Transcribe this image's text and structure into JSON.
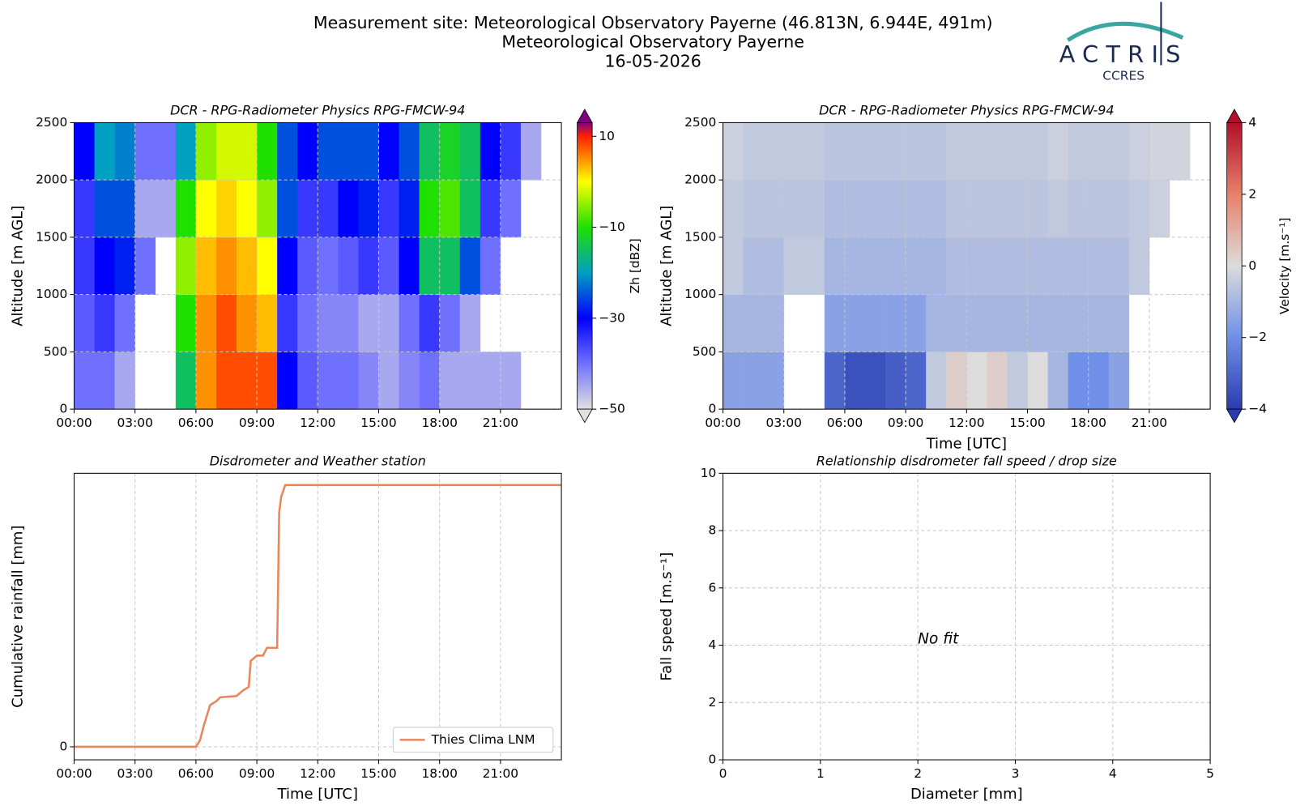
{
  "header": {
    "title": "Measurement site: Meteorological Observatory Payerne (46.813N, 6.944E, 491m)",
    "subtitle": "Meteorological Observatory Payerne",
    "date": "16-05-2026"
  },
  "logo": {
    "name": "ACTRIS",
    "sub": "CCRES"
  },
  "chart_data": [
    {
      "type": "heatmap",
      "title": "DCR - RPG-Radiometer Physics RPG-FMCW-94",
      "ylabel": "Altitude [m AGL]",
      "xlim": [
        0,
        24
      ],
      "xticks": [
        {
          "value": 0,
          "label": "00:00"
        },
        {
          "value": 3,
          "label": "03:00"
        },
        {
          "value": 6,
          "label": "06:00"
        },
        {
          "value": 9,
          "label": "09:00"
        },
        {
          "value": 12,
          "label": "12:00"
        },
        {
          "value": 15,
          "label": "15:00"
        },
        {
          "value": 18,
          "label": "18:00"
        },
        {
          "value": 21,
          "label": "21:00"
        }
      ],
      "ylim": [
        0,
        2500
      ],
      "yticks": [
        0,
        500,
        1000,
        1500,
        2000,
        2500
      ],
      "grid": true,
      "x": [
        0,
        1,
        2,
        3,
        4,
        5,
        6,
        7,
        8,
        9,
        10,
        11,
        12,
        13,
        14,
        15,
        16,
        17,
        18,
        19,
        20,
        21,
        22,
        23,
        24
      ],
      "y": [
        0,
        500,
        1000,
        1500,
        2000,
        2500
      ],
      "z": [
        [
          -40,
          -40,
          -45,
          null,
          null,
          -15,
          5,
          8,
          8,
          8,
          -30,
          -38,
          -40,
          -40,
          -42,
          -45,
          -42,
          -40,
          -45,
          -45,
          -45,
          -45,
          null,
          null
        ],
        [
          -38,
          -35,
          -40,
          null,
          null,
          -10,
          5,
          8,
          5,
          3,
          -35,
          -40,
          -42,
          -42,
          -45,
          -45,
          -40,
          -35,
          -40,
          -45,
          null,
          null,
          null,
          null
        ],
        [
          -35,
          -30,
          -28,
          -40,
          null,
          -5,
          3,
          5,
          3,
          0,
          -30,
          -38,
          -40,
          -38,
          -35,
          -38,
          -30,
          -15,
          -15,
          -25,
          -40,
          null,
          null,
          null
        ],
        [
          -35,
          -25,
          -25,
          -45,
          -45,
          -10,
          0,
          2,
          0,
          -5,
          -25,
          -35,
          -35,
          -30,
          -28,
          -35,
          -28,
          -10,
          -8,
          -15,
          -35,
          -40,
          null,
          null
        ],
        [
          -30,
          -20,
          -22,
          -40,
          -40,
          -20,
          -5,
          -2,
          -2,
          -10,
          -25,
          -30,
          -25,
          -25,
          -25,
          -30,
          -25,
          -15,
          -12,
          -15,
          -30,
          -35,
          -45,
          null
        ]
      ],
      "colorbar": {
        "label": "Zh [dBZ]",
        "clim": [
          -50,
          13
        ],
        "ticks": [
          {
            "value": -50,
            "label": "−50"
          },
          {
            "value": -30,
            "label": "−30"
          },
          {
            "value": -10,
            "label": "−10"
          },
          10
        ],
        "colormap": [
          {
            "value": -50,
            "color": "#e0e0e0"
          },
          {
            "value": -40,
            "color": "#7070ff"
          },
          {
            "value": -30,
            "color": "#0000ff"
          },
          {
            "value": -20,
            "color": "#00a0c0"
          },
          {
            "value": -10,
            "color": "#20e000"
          },
          {
            "value": 0,
            "color": "#ffff00"
          },
          {
            "value": 10,
            "color": "#ff2000"
          },
          {
            "value": 13,
            "color": "#800080"
          }
        ]
      }
    },
    {
      "type": "heatmap",
      "title": "DCR - RPG-Radiometer Physics RPG-FMCW-94",
      "ylabel": "Altitude [m AGL]",
      "xlabel": "Time [UTC]",
      "xlim": [
        0,
        24
      ],
      "xticks": [
        {
          "value": 0,
          "label": "00:00"
        },
        {
          "value": 3,
          "label": "03:00"
        },
        {
          "value": 6,
          "label": "06:00"
        },
        {
          "value": 9,
          "label": "09:00"
        },
        {
          "value": 12,
          "label": "12:00"
        },
        {
          "value": 15,
          "label": "15:00"
        },
        {
          "value": 18,
          "label": "18:00"
        },
        {
          "value": 21,
          "label": "21:00"
        }
      ],
      "ylim": [
        0,
        2500
      ],
      "yticks": [
        0,
        500,
        1000,
        1500,
        2000,
        2500
      ],
      "grid": true,
      "x": [
        0,
        1,
        2,
        3,
        4,
        5,
        6,
        7,
        8,
        9,
        10,
        11,
        12,
        13,
        14,
        15,
        16,
        17,
        18,
        19,
        20,
        21,
        22,
        23,
        24
      ],
      "y": [
        0,
        500,
        1000,
        1500,
        2000,
        2500
      ],
      "z": [
        [
          -1.5,
          -1.5,
          -1.5,
          null,
          null,
          -3,
          -3.5,
          -3.5,
          -3.2,
          -3,
          -0.5,
          0.3,
          0,
          0.3,
          -0.5,
          0,
          -1,
          -2,
          -2,
          -1.5,
          null,
          null,
          null,
          null
        ],
        [
          -1,
          -1,
          -1,
          null,
          null,
          -1.5,
          -1.5,
          -1.5,
          -1.5,
          -1.5,
          -1,
          -1,
          -1,
          -1,
          -1,
          -1,
          -1,
          -1,
          -1,
          -1,
          null,
          null,
          null,
          null
        ],
        [
          -0.5,
          -0.8,
          -0.8,
          -0.5,
          -0.5,
          -1,
          -1,
          -1,
          -1,
          -1,
          -1,
          -0.8,
          -0.8,
          -0.8,
          -0.8,
          -0.8,
          -0.8,
          -0.8,
          -0.8,
          -0.8,
          -0.5,
          null,
          null,
          null
        ],
        [
          -0.5,
          -0.6,
          -0.6,
          -0.6,
          -0.6,
          -0.8,
          -0.8,
          -0.8,
          -0.8,
          -0.8,
          -0.8,
          -0.6,
          -0.6,
          -0.6,
          -0.6,
          -0.6,
          -0.5,
          -0.6,
          -0.6,
          -0.6,
          -0.5,
          -0.3,
          null,
          null
        ],
        [
          -0.3,
          -0.5,
          -0.5,
          -0.5,
          -0.5,
          -0.6,
          -0.6,
          -0.6,
          -0.6,
          -0.6,
          -0.6,
          -0.5,
          -0.5,
          -0.5,
          -0.5,
          -0.5,
          -0.3,
          -0.5,
          -0.5,
          -0.5,
          -0.3,
          -0.2,
          -0.2,
          null
        ]
      ],
      "colorbar": {
        "label": "Velocity [m.s⁻¹]",
        "clim": [
          -4,
          4
        ],
        "ticks": [
          {
            "value": -4,
            "label": "−4"
          },
          {
            "value": -2,
            "label": "−2"
          },
          0,
          2,
          4
        ],
        "colormap": [
          {
            "value": -4,
            "color": "#2a3cb0"
          },
          {
            "value": -2,
            "color": "#6f8fe8"
          },
          {
            "value": 0,
            "color": "#dcdcdc"
          },
          {
            "value": 2,
            "color": "#e8806a"
          },
          {
            "value": 4,
            "color": "#b0102a"
          }
        ]
      }
    },
    {
      "type": "line",
      "title": "Disdrometer and Weather station",
      "xlabel": "Time [UTC]",
      "ylabel": "Cumulative rainfall [mm]",
      "xlim": [
        0,
        24
      ],
      "xticks": [
        {
          "value": 0,
          "label": "00:00"
        },
        {
          "value": 3,
          "label": "03:00"
        },
        {
          "value": 6,
          "label": "06:00"
        },
        {
          "value": 9,
          "label": "09:00"
        },
        {
          "value": 12,
          "label": "12:00"
        },
        {
          "value": 15,
          "label": "15:00"
        },
        {
          "value": 18,
          "label": "18:00"
        },
        {
          "value": 21,
          "label": "21:00"
        }
      ],
      "ylim": [
        -1,
        21
      ],
      "yticks": [
        0
      ],
      "grid": true,
      "legend": "lower right",
      "x": [
        0,
        6.0,
        6.2,
        6.4,
        6.7,
        7.0,
        7.2,
        8.0,
        8.3,
        8.6,
        8.7,
        9.0,
        9.3,
        9.5,
        10.0,
        10.1,
        10.2,
        10.4,
        24
      ],
      "series": [
        {
          "name": "Thies Clima LNM",
          "color": "#e8875b",
          "values": [
            0,
            0,
            0.5,
            1.7,
            3.2,
            3.5,
            3.8,
            3.9,
            4.3,
            4.6,
            6.6,
            7.0,
            7.0,
            7.6,
            7.6,
            18,
            19.2,
            20.1,
            20.1
          ]
        }
      ]
    },
    {
      "type": "scatter",
      "title": "Relationship disdrometer fall speed / drop size",
      "xlabel": "Diameter [mm]",
      "ylabel": "Fall speed [m.s⁻¹]",
      "xlim": [
        0,
        5
      ],
      "xticks": [
        0,
        1,
        2,
        3,
        4,
        5
      ],
      "ylim": [
        0,
        10
      ],
      "yticks": [
        0,
        2,
        4,
        6,
        8,
        10
      ],
      "grid": true,
      "annotation": "No fit",
      "series": []
    }
  ]
}
